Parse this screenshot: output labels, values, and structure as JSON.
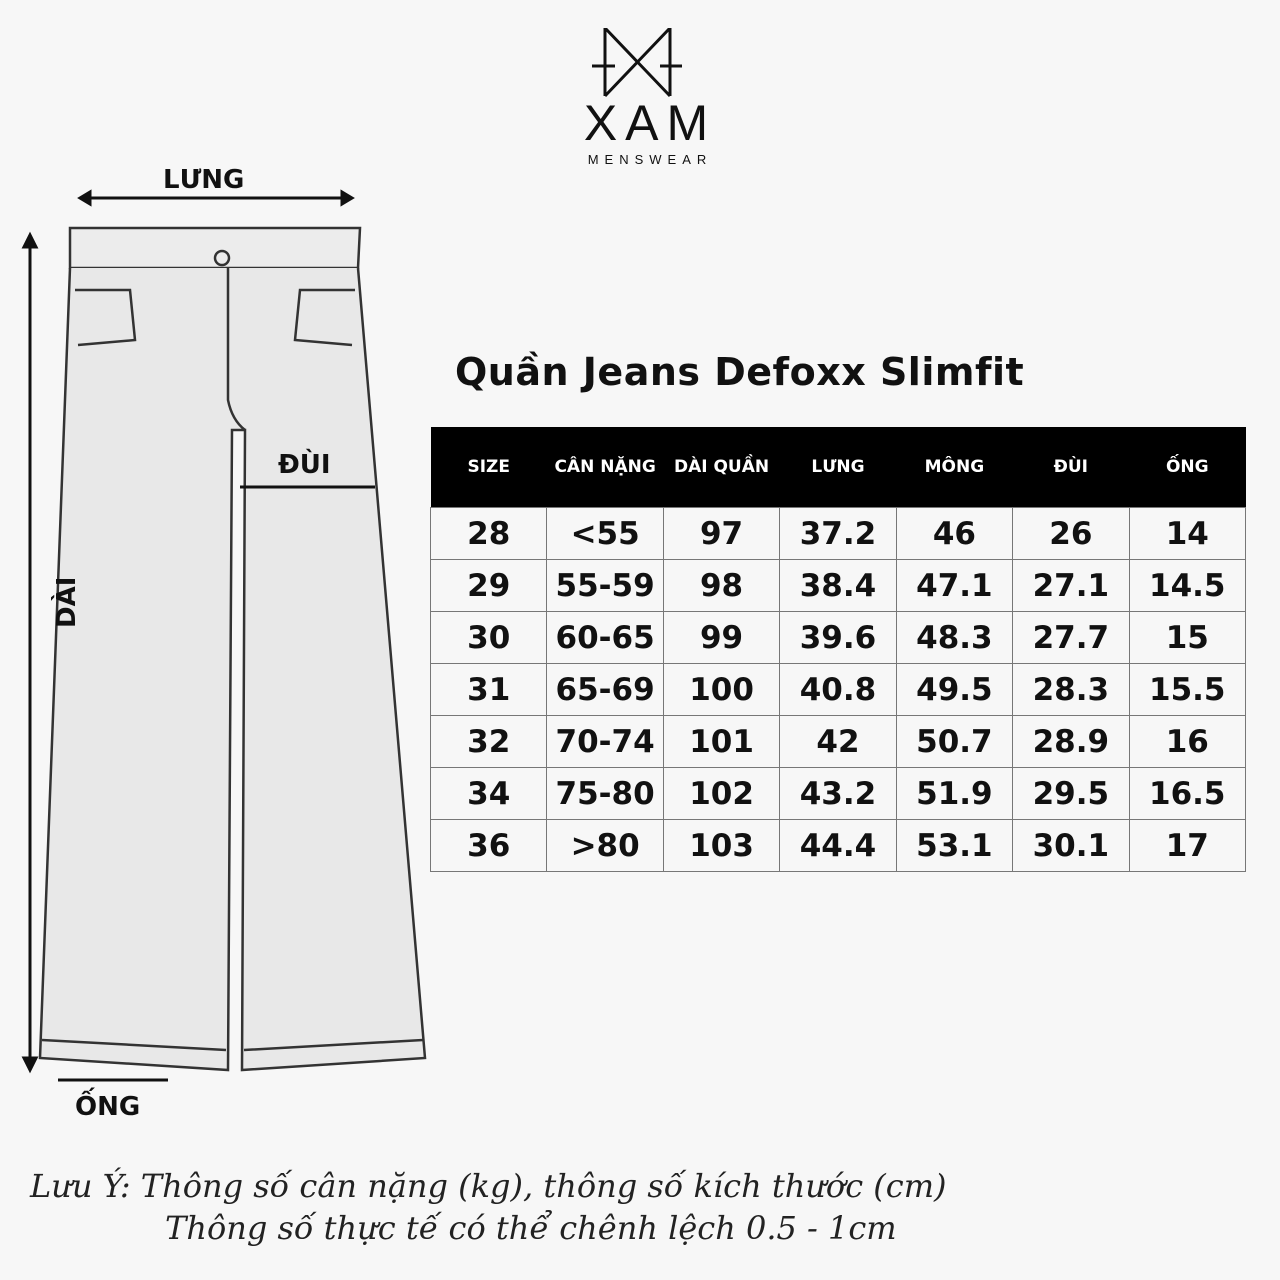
{
  "brand": {
    "name": "XAM",
    "tagline": "MENSWEAR"
  },
  "title": "Quần Jeans Defoxx Slimfit",
  "diagram_labels": {
    "waist": "LƯNG",
    "thigh": "ĐÙI",
    "length": "DÀI",
    "hem": "ỐNG"
  },
  "table": {
    "headers": [
      "SIZE",
      "CÂN NẶNG",
      "DÀI QUẦN",
      "LƯNG",
      "MÔNG",
      "ĐÙI",
      "ỐNG"
    ],
    "rows": [
      [
        "28",
        "<55",
        "97",
        "37.2",
        "46",
        "26",
        "14"
      ],
      [
        "29",
        "55-59",
        "98",
        "38.4",
        "47.1",
        "27.1",
        "14.5"
      ],
      [
        "30",
        "60-65",
        "99",
        "39.6",
        "48.3",
        "27.7",
        "15"
      ],
      [
        "31",
        "65-69",
        "100",
        "40.8",
        "49.5",
        "28.3",
        "15.5"
      ],
      [
        "32",
        "70-74",
        "101",
        "42",
        "50.7",
        "28.9",
        "16"
      ],
      [
        "34",
        "75-80",
        "102",
        "43.2",
        "51.9",
        "29.5",
        "16.5"
      ],
      [
        "36",
        ">80",
        "103",
        "44.4",
        "53.1",
        "30.1",
        "17"
      ]
    ]
  },
  "note": {
    "line1": "Lưu Ý: Thông số cân nặng (kg), thông số kích thước (cm)",
    "line2": "Thông số thực tế có thể chênh lệch 0.5 - 1cm"
  }
}
